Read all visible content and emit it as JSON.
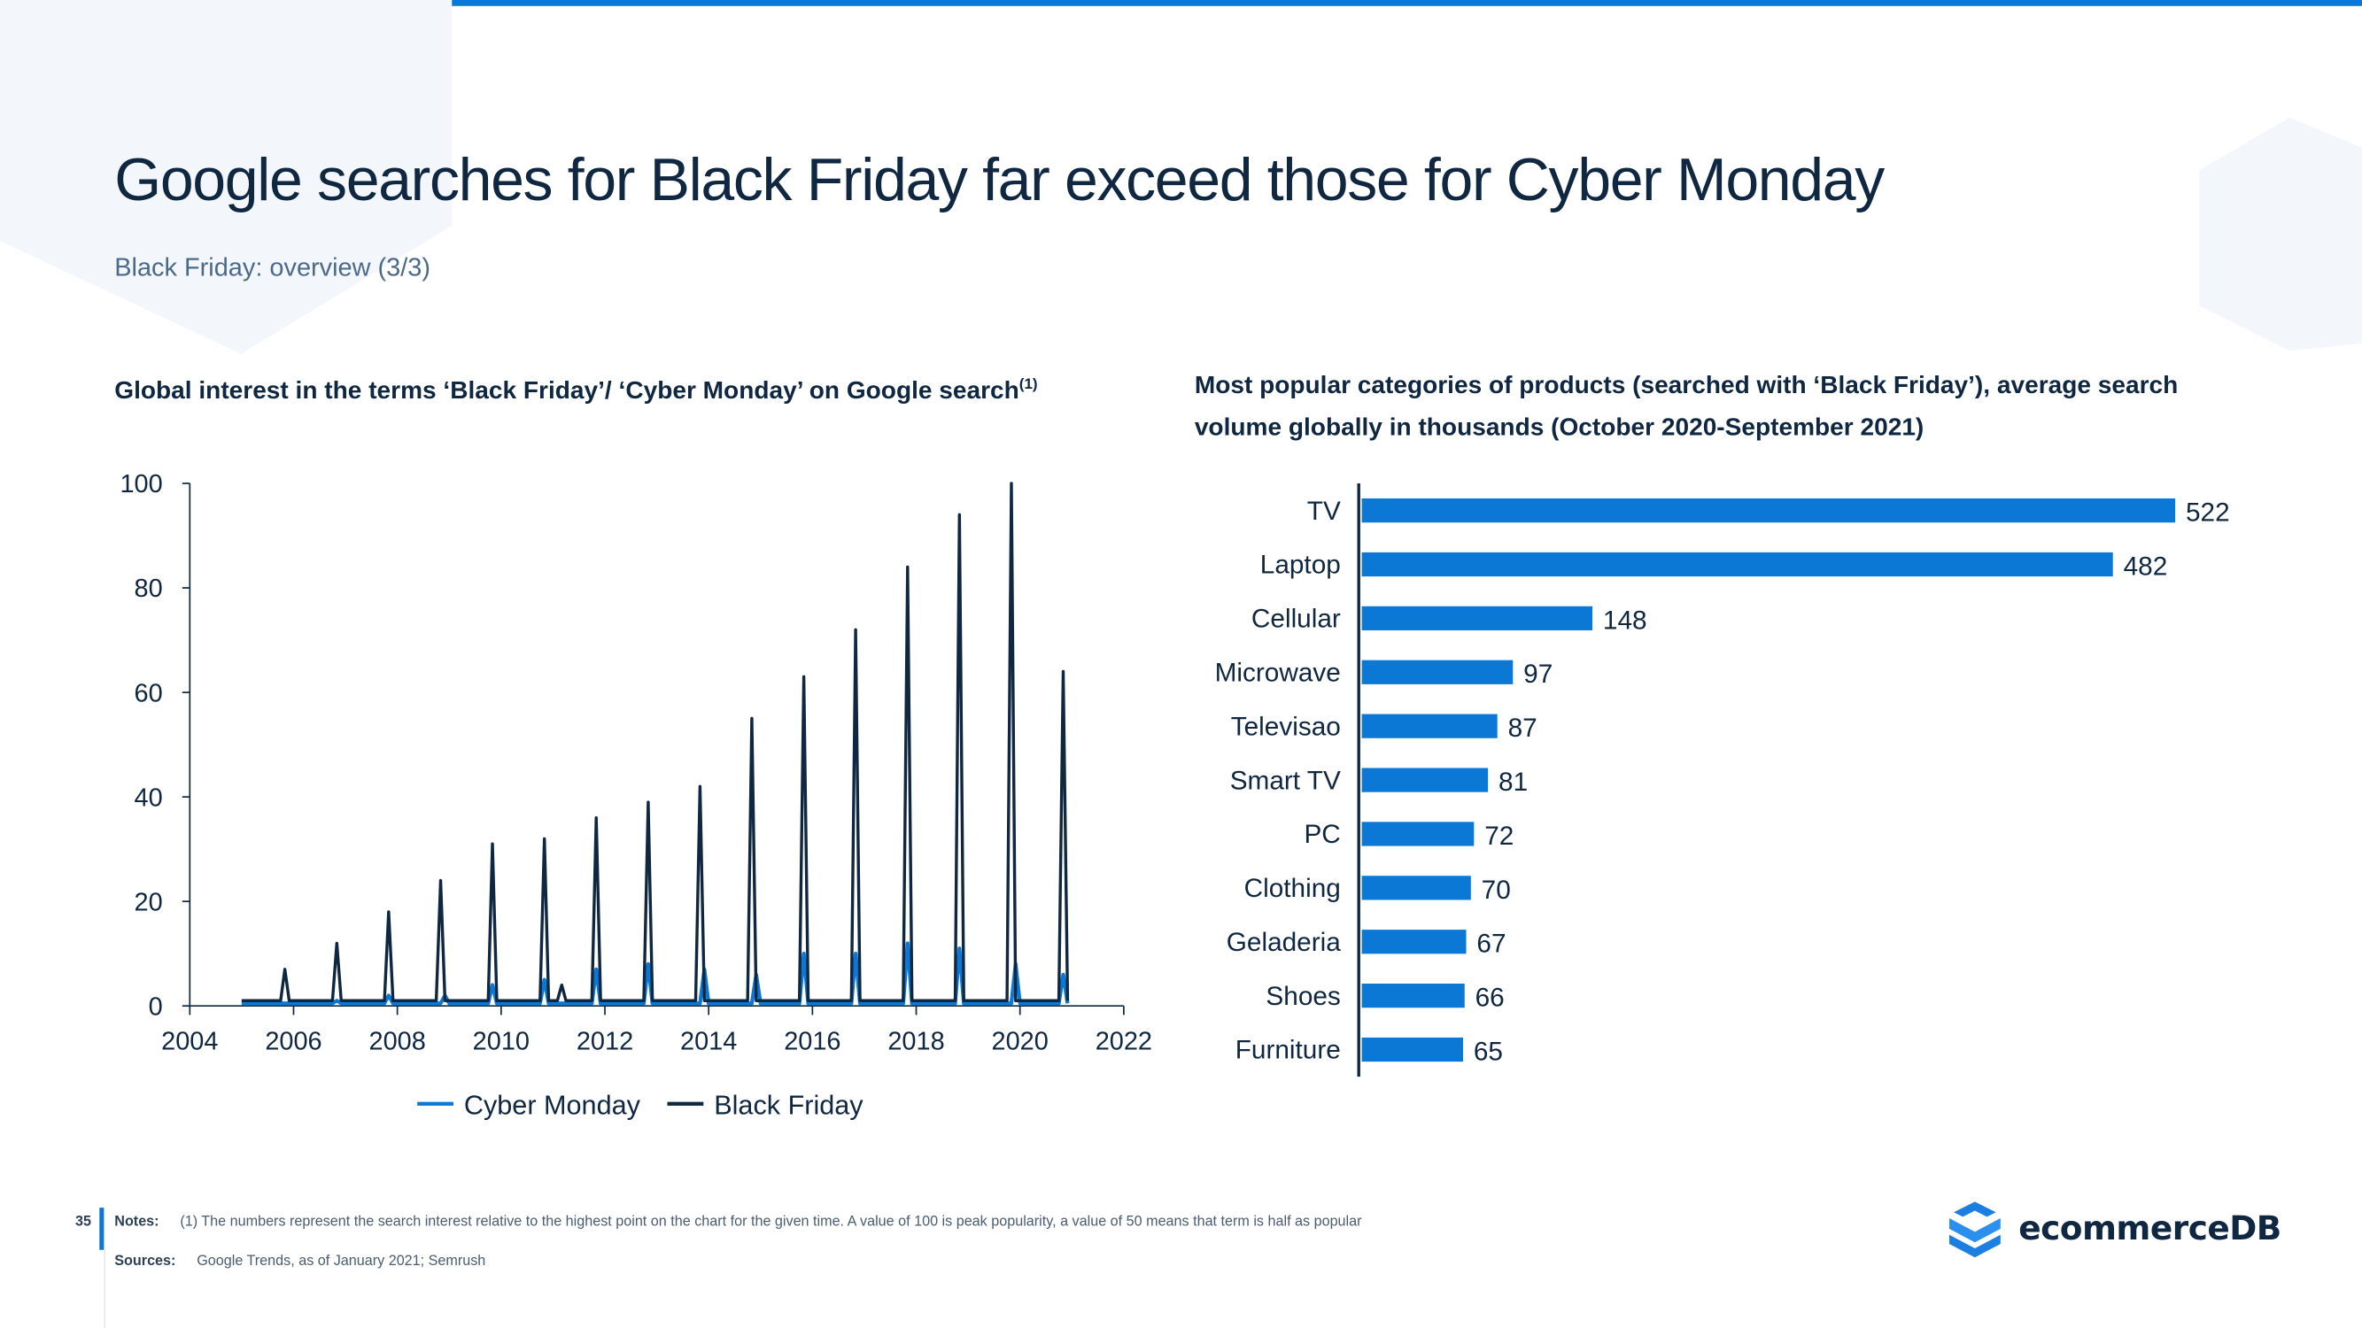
{
  "page": {
    "title": "Google searches for Black Friday far exceed those for Cyber Monday",
    "subtitle": "Black Friday: overview (3/3)",
    "page_number": "35",
    "notes_label": "Notes:",
    "notes_text": "(1) The numbers represent the search interest relative to the highest point on the chart for the given time. A value of 100 is peak popularity, a value of 50 means that term is half as popular",
    "sources_label": "Sources:",
    "sources_text": "Google Trends, as of January 2021; Semrush",
    "logo_text": "ecommerceDB",
    "colors": {
      "accent": "#0a78d4",
      "dark": "#0f2740"
    }
  },
  "chart_data": [
    {
      "type": "line",
      "title": "Global interest in the terms ‘Black Friday’/ ‘Cyber Monday’ on Google search",
      "title_footnote": "(1)",
      "xlim": [
        2004,
        2022
      ],
      "ylim": [
        0,
        100
      ],
      "x_ticks": [
        "2004",
        "2006",
        "2008",
        "2010",
        "2012",
        "2014",
        "2016",
        "2018",
        "2020",
        "2022"
      ],
      "y_ticks": [
        "0",
        "20",
        "40",
        "60",
        "80",
        "100"
      ],
      "grid": false,
      "legend": "bottom",
      "series": [
        {
          "name": "Cyber Monday",
          "color": "#0a78d4",
          "baseline": 0.5,
          "peaks": [
            [
              "2005-11",
              0.5
            ],
            [
              "2006-11",
              1
            ],
            [
              "2007-11",
              2
            ],
            [
              "2008-12",
              2
            ],
            [
              "2009-11",
              4
            ],
            [
              "2010-11",
              5
            ],
            [
              "2011-11",
              7
            ],
            [
              "2012-11",
              8
            ],
            [
              "2013-12",
              7
            ],
            [
              "2014-12",
              6
            ],
            [
              "2015-11",
              10
            ],
            [
              "2016-11",
              10
            ],
            [
              "2017-11",
              12
            ],
            [
              "2018-11",
              11
            ],
            [
              "2019-12",
              8
            ],
            [
              "2020-11",
              6
            ]
          ]
        },
        {
          "name": "Black Friday",
          "color": "#0f2740",
          "baseline": 1,
          "peaks": [
            [
              "2005-11",
              7
            ],
            [
              "2006-11",
              12
            ],
            [
              "2007-11",
              18
            ],
            [
              "2008-11",
              24
            ],
            [
              "2009-11",
              31
            ],
            [
              "2010-11",
              32
            ],
            [
              "2011-03",
              4
            ],
            [
              "2011-11",
              36
            ],
            [
              "2012-11",
              39
            ],
            [
              "2013-11",
              42
            ],
            [
              "2014-11",
              55
            ],
            [
              "2015-11",
              63
            ],
            [
              "2016-11",
              72
            ],
            [
              "2017-11",
              84
            ],
            [
              "2018-11",
              94
            ],
            [
              "2019-11",
              100
            ],
            [
              "2020-11",
              64
            ]
          ]
        }
      ]
    },
    {
      "type": "bar",
      "orientation": "horizontal",
      "title": "Most popular categories of products (searched with ‘Black Friday’), average search volume globally in thousands (October 2020-September 2021)",
      "categories": [
        "TV",
        "Laptop",
        "Cellular",
        "Microwave",
        "Televisao",
        "Smart TV",
        "PC",
        "Clothing",
        "Geladeria",
        "Shoes",
        "Furniture"
      ],
      "values": [
        522,
        482,
        148,
        97,
        87,
        81,
        72,
        70,
        67,
        66,
        65
      ],
      "color": "#0a78d4",
      "data_labels": true
    }
  ]
}
